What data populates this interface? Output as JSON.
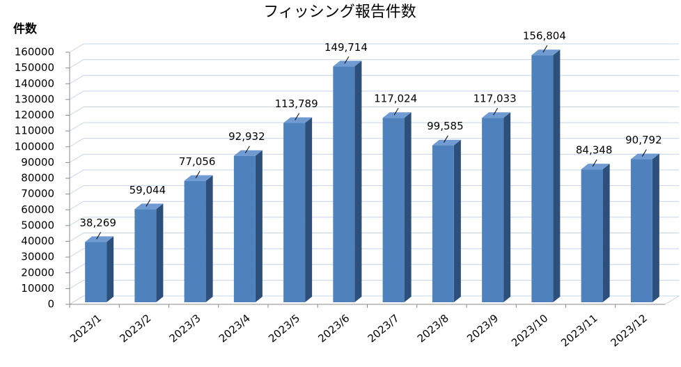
{
  "chart_data": {
    "type": "bar3d",
    "title": "フィッシング報告件数",
    "y_label": "件数",
    "categories": [
      "2023/1",
      "2023/2",
      "2023/3",
      "2023/4",
      "2023/5",
      "2023/6",
      "2023/7",
      "2023/8",
      "2023/9",
      "2023/10",
      "2023/11",
      "2023/12"
    ],
    "values": [
      38269,
      59044,
      77056,
      92932,
      113789,
      149714,
      117024,
      99585,
      117033,
      156804,
      84348,
      90792
    ],
    "value_labels": [
      "38,269",
      "59,044",
      "77,056",
      "92,932",
      "113,789",
      "149,714",
      "117,024",
      "99,585",
      "117,033",
      "156,804",
      "84,348",
      "90,792"
    ],
    "color": "#4f81bd",
    "ylim": [
      0,
      160000
    ],
    "yticks": [
      0,
      10000,
      20000,
      30000,
      40000,
      50000,
      60000,
      70000,
      80000,
      90000,
      100000,
      110000,
      120000,
      130000,
      140000,
      150000,
      160000
    ],
    "grid": true
  }
}
